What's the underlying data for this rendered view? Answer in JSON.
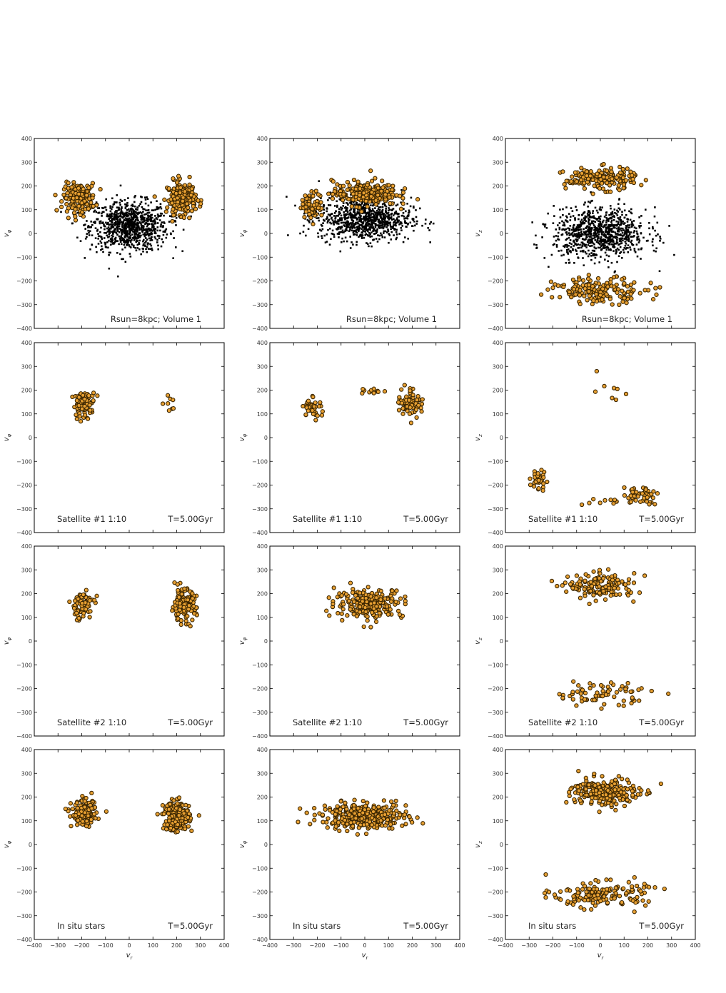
{
  "figure": {
    "colors": {
      "background_stars": "#000000",
      "satellite_fill": "#e8a032",
      "satellite_edge": "#3a2500",
      "frame": "#000000"
    },
    "axes": {
      "xlim": [
        -400,
        400
      ],
      "ylim": [
        -400,
        400
      ],
      "xticks": [
        "−400",
        "−300",
        "−200",
        "−100",
        "0",
        "100",
        "200",
        "300",
        "400"
      ],
      "yticks": [
        "400",
        "300",
        "200",
        "100",
        "0",
        "−100",
        "−200",
        "−300",
        "−400"
      ],
      "xlabel": "v",
      "ylabels": [
        "v",
        "v",
        "v"
      ],
      "ylabel_subscripts": [
        "φ",
        "φ",
        "z"
      ],
      "xlabel_subscript": "r"
    },
    "rows": [
      {
        "left": "Rsun=8kpc; Volume 1",
        "right": ""
      },
      {
        "left": "Satellite #1 1:10",
        "right": "T=5.00Gyr"
      },
      {
        "left": "Satellite #2 1:10",
        "right": "T=5.00Gyr"
      },
      {
        "left": "In situ stars",
        "right": "T=5.00Gyr"
      }
    ]
  },
  "chart_data": [
    {
      "type": "scatter",
      "row": 0,
      "col": 0,
      "label": "Rsun=8kpc; Volume 1",
      "xlabel": "",
      "ylabel": "v_phi",
      "clusters": [
        {
          "kind": "black",
          "center": [
            0,
            30
          ],
          "spread": [
            110,
            70
          ],
          "count": 900
        },
        {
          "kind": "orange",
          "center": [
            -210,
            150
          ],
          "spread": [
            45,
            40
          ],
          "count": 170
        },
        {
          "kind": "orange",
          "center": [
            220,
            150
          ],
          "spread": [
            40,
            45
          ],
          "count": 200
        }
      ]
    },
    {
      "type": "scatter",
      "row": 0,
      "col": 1,
      "label": "Rsun=8kpc; Volume 1",
      "xlabel": "",
      "ylabel": "v_phi",
      "clusters": [
        {
          "kind": "black",
          "center": [
            0,
            60
          ],
          "spread": [
            130,
            60
          ],
          "count": 900
        },
        {
          "kind": "orange",
          "center": [
            0,
            170
          ],
          "spread": [
            90,
            35
          ],
          "count": 220
        },
        {
          "kind": "orange",
          "center": [
            -220,
            120
          ],
          "spread": [
            30,
            35
          ],
          "count": 70
        }
      ]
    },
    {
      "type": "scatter",
      "row": 0,
      "col": 2,
      "label": "Rsun=8kpc; Volume 1",
      "xlabel": "",
      "ylabel": "v_z",
      "clusters": [
        {
          "kind": "black",
          "center": [
            0,
            0
          ],
          "spread": [
            130,
            70
          ],
          "count": 900
        },
        {
          "kind": "orange",
          "center": [
            0,
            230
          ],
          "spread": [
            100,
            30
          ],
          "count": 180
        },
        {
          "kind": "orange",
          "center": [
            0,
            -240
          ],
          "spread": [
            130,
            35
          ],
          "count": 160
        }
      ]
    },
    {
      "type": "scatter",
      "row": 1,
      "col": 0,
      "label": "Satellite #1 1:10",
      "xlabel": "",
      "ylabel": "v_phi",
      "clusters": [
        {
          "kind": "orange",
          "center": [
            -190,
            140
          ],
          "spread": [
            30,
            35
          ],
          "count": 85
        },
        {
          "kind": "orange",
          "center": [
            180,
            150
          ],
          "spread": [
            30,
            30
          ],
          "count": 8
        }
      ]
    },
    {
      "type": "scatter",
      "row": 1,
      "col": 1,
      "label": "Satellite #1 1:10",
      "xlabel": "",
      "ylabel": "v_phi",
      "clusters": [
        {
          "kind": "orange",
          "center": [
            -220,
            130
          ],
          "spread": [
            25,
            30
          ],
          "count": 40
        },
        {
          "kind": "orange",
          "center": [
            190,
            150
          ],
          "spread": [
            35,
            40
          ],
          "count": 70
        },
        {
          "kind": "orange",
          "center": [
            30,
            195
          ],
          "spread": [
            35,
            10
          ],
          "count": 12
        }
      ]
    },
    {
      "type": "scatter",
      "row": 1,
      "col": 2,
      "label": "Satellite #1 1:10",
      "xlabel": "",
      "ylabel": "v_z",
      "clusters": [
        {
          "kind": "orange",
          "center": [
            -260,
            -180
          ],
          "spread": [
            20,
            30
          ],
          "count": 35
        },
        {
          "kind": "orange",
          "center": [
            170,
            -240
          ],
          "spread": [
            50,
            25
          ],
          "count": 50
        },
        {
          "kind": "orange",
          "center": [
            0,
            -270
          ],
          "spread": [
            50,
            15
          ],
          "count": 10
        },
        {
          "kind": "orange",
          "center": [
            50,
            200
          ],
          "spread": [
            70,
            35
          ],
          "count": 8
        }
      ]
    },
    {
      "type": "scatter",
      "row": 2,
      "col": 0,
      "label": "Satellite #2 1:10",
      "xlabel": "",
      "ylabel": "v_phi",
      "clusters": [
        {
          "kind": "orange",
          "center": [
            -200,
            150
          ],
          "spread": [
            35,
            40
          ],
          "count": 70
        },
        {
          "kind": "orange",
          "center": [
            230,
            150
          ],
          "spread": [
            35,
            45
          ],
          "count": 140
        }
      ]
    },
    {
      "type": "scatter",
      "row": 2,
      "col": 1,
      "label": "Satellite #2 1:10",
      "xlabel": "",
      "ylabel": "v_phi",
      "clusters": [
        {
          "kind": "orange",
          "center": [
            20,
            160
          ],
          "spread": [
            95,
            40
          ],
          "count": 230
        }
      ]
    },
    {
      "type": "scatter",
      "row": 2,
      "col": 2,
      "label": "Satellite #2 1:10",
      "xlabel": "",
      "ylabel": "v_z",
      "clusters": [
        {
          "kind": "orange",
          "center": [
            10,
            230
          ],
          "spread": [
            95,
            35
          ],
          "count": 150
        },
        {
          "kind": "orange",
          "center": [
            0,
            -220
          ],
          "spread": [
            140,
            35
          ],
          "count": 70
        }
      ]
    },
    {
      "type": "scatter",
      "row": 3,
      "col": 0,
      "label": "In situ stars",
      "xlabel": "v_r",
      "ylabel": "v_phi",
      "clusters": [
        {
          "kind": "orange",
          "center": [
            -190,
            130
          ],
          "spread": [
            35,
            35
          ],
          "count": 150
        },
        {
          "kind": "orange",
          "center": [
            200,
            120
          ],
          "spread": [
            35,
            40
          ],
          "count": 260
        }
      ]
    },
    {
      "type": "scatter",
      "row": 3,
      "col": 1,
      "label": "In situ stars",
      "xlabel": "v_r",
      "ylabel": "v_phi",
      "clusters": [
        {
          "kind": "orange",
          "center": [
            0,
            120
          ],
          "spread": [
            120,
            35
          ],
          "count": 340
        }
      ]
    },
    {
      "type": "scatter",
      "row": 3,
      "col": 2,
      "label": "In situ stars",
      "xlabel": "v_r",
      "ylabel": "v_z",
      "clusters": [
        {
          "kind": "orange",
          "center": [
            20,
            220
          ],
          "spread": [
            95,
            40
          ],
          "count": 230
        },
        {
          "kind": "orange",
          "center": [
            0,
            -210
          ],
          "spread": [
            130,
            35
          ],
          "count": 160
        }
      ]
    }
  ]
}
